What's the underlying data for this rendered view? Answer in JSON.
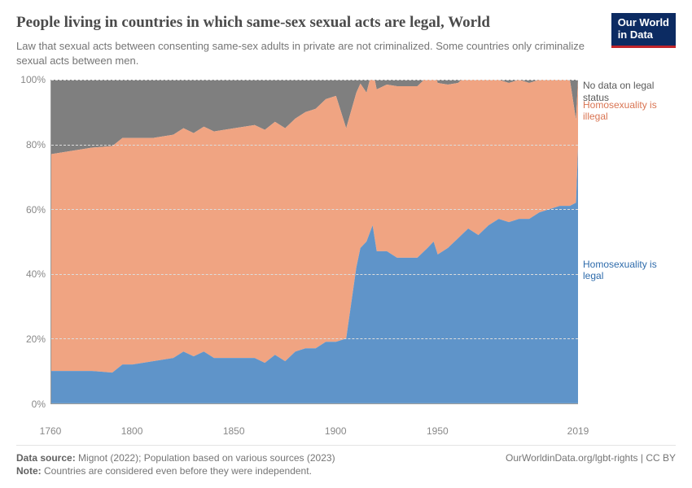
{
  "header": {
    "title": "People living in countries in which same-sex sexual acts are legal, World",
    "subtitle": "Law that sexual acts between consenting same-sex adults in private are not criminalized. Some countries only criminalize sexual acts between men.",
    "logo_line1": "Our World",
    "logo_line2": "in Data"
  },
  "chart": {
    "type": "stacked-area",
    "x_domain": [
      1760,
      2019
    ],
    "y_domain": [
      0,
      100
    ],
    "y_ticks": [
      0,
      20,
      40,
      60,
      80,
      100
    ],
    "y_tick_suffix": "%",
    "x_ticks": [
      1760,
      1800,
      1850,
      1900,
      1950,
      2019
    ],
    "grid_color": "#dddddd",
    "axis_color": "#999999",
    "background_color": "#ffffff",
    "tick_fontsize": 12,
    "tick_color": "#888888",
    "series": [
      {
        "key": "legal",
        "label": "Homosexuality is legal",
        "color": "#5f94c9",
        "label_y_pct": 55,
        "label_color": "#2e6bab",
        "data": [
          [
            1760,
            10
          ],
          [
            1770,
            10
          ],
          [
            1780,
            10
          ],
          [
            1790,
            9.5
          ],
          [
            1795,
            12
          ],
          [
            1800,
            12
          ],
          [
            1810,
            13
          ],
          [
            1820,
            14
          ],
          [
            1825,
            16
          ],
          [
            1830,
            14.5
          ],
          [
            1835,
            16
          ],
          [
            1840,
            14
          ],
          [
            1850,
            14
          ],
          [
            1860,
            14
          ],
          [
            1865,
            12.5
          ],
          [
            1870,
            15
          ],
          [
            1875,
            13
          ],
          [
            1880,
            16
          ],
          [
            1885,
            17
          ],
          [
            1890,
            17
          ],
          [
            1895,
            19
          ],
          [
            1900,
            19
          ],
          [
            1905,
            20
          ],
          [
            1910,
            42
          ],
          [
            1912,
            48
          ],
          [
            1915,
            50
          ],
          [
            1918,
            55
          ],
          [
            1920,
            47
          ],
          [
            1925,
            47
          ],
          [
            1930,
            45
          ],
          [
            1935,
            45
          ],
          [
            1940,
            45
          ],
          [
            1945,
            48
          ],
          [
            1948,
            50
          ],
          [
            1950,
            46
          ],
          [
            1955,
            48
          ],
          [
            1960,
            51
          ],
          [
            1965,
            54
          ],
          [
            1970,
            52
          ],
          [
            1975,
            55
          ],
          [
            1980,
            57
          ],
          [
            1985,
            56
          ],
          [
            1990,
            57
          ],
          [
            1995,
            57
          ],
          [
            2000,
            59
          ],
          [
            2005,
            60
          ],
          [
            2010,
            61
          ],
          [
            2015,
            61
          ],
          [
            2018,
            62
          ],
          [
            2019,
            79
          ]
        ]
      },
      {
        "key": "illegal",
        "label": "Homosexuality is illegal",
        "color": "#f0a482",
        "label_y_pct": 6,
        "label_color": "#d97452",
        "data": [
          [
            1760,
            67
          ],
          [
            1770,
            68
          ],
          [
            1780,
            69
          ],
          [
            1790,
            70
          ],
          [
            1800,
            70
          ],
          [
            1810,
            69
          ],
          [
            1820,
            69
          ],
          [
            1830,
            69
          ],
          [
            1840,
            70
          ],
          [
            1850,
            71
          ],
          [
            1860,
            72
          ],
          [
            1870,
            72
          ],
          [
            1880,
            72
          ],
          [
            1890,
            74
          ],
          [
            1900,
            76
          ],
          [
            1910,
            54
          ],
          [
            1915,
            46
          ],
          [
            1920,
            50
          ],
          [
            1930,
            53
          ],
          [
            1940,
            53
          ],
          [
            1950,
            53
          ],
          [
            1960,
            48
          ],
          [
            1970,
            48
          ],
          [
            1980,
            43
          ],
          [
            1990,
            43
          ],
          [
            2000,
            41
          ],
          [
            2010,
            39
          ],
          [
            2015,
            39
          ],
          [
            2019,
            21
          ]
        ]
      },
      {
        "key": "nodata",
        "label": "No data on legal status",
        "color": "#7f7f7f",
        "label_y_pct": 0,
        "label_color": "#5a5a5a",
        "data": [
          [
            1760,
            23
          ],
          [
            1780,
            21
          ],
          [
            1800,
            18
          ],
          [
            1820,
            17
          ],
          [
            1840,
            16
          ],
          [
            1860,
            14
          ],
          [
            1880,
            12
          ],
          [
            1900,
            5
          ],
          [
            1910,
            4
          ],
          [
            1920,
            3
          ],
          [
            1940,
            2
          ],
          [
            1960,
            1
          ],
          [
            1980,
            0
          ],
          [
            2000,
            0
          ],
          [
            2019,
            0
          ]
        ]
      }
    ]
  },
  "footer": {
    "source_label": "Data source:",
    "source_text": "Mignot (2022); Population based on various sources (2023)",
    "note_label": "Note:",
    "note_text": "Countries are considered even before they were independent.",
    "attribution": "OurWorldinData.org/lgbt-rights | CC BY"
  }
}
